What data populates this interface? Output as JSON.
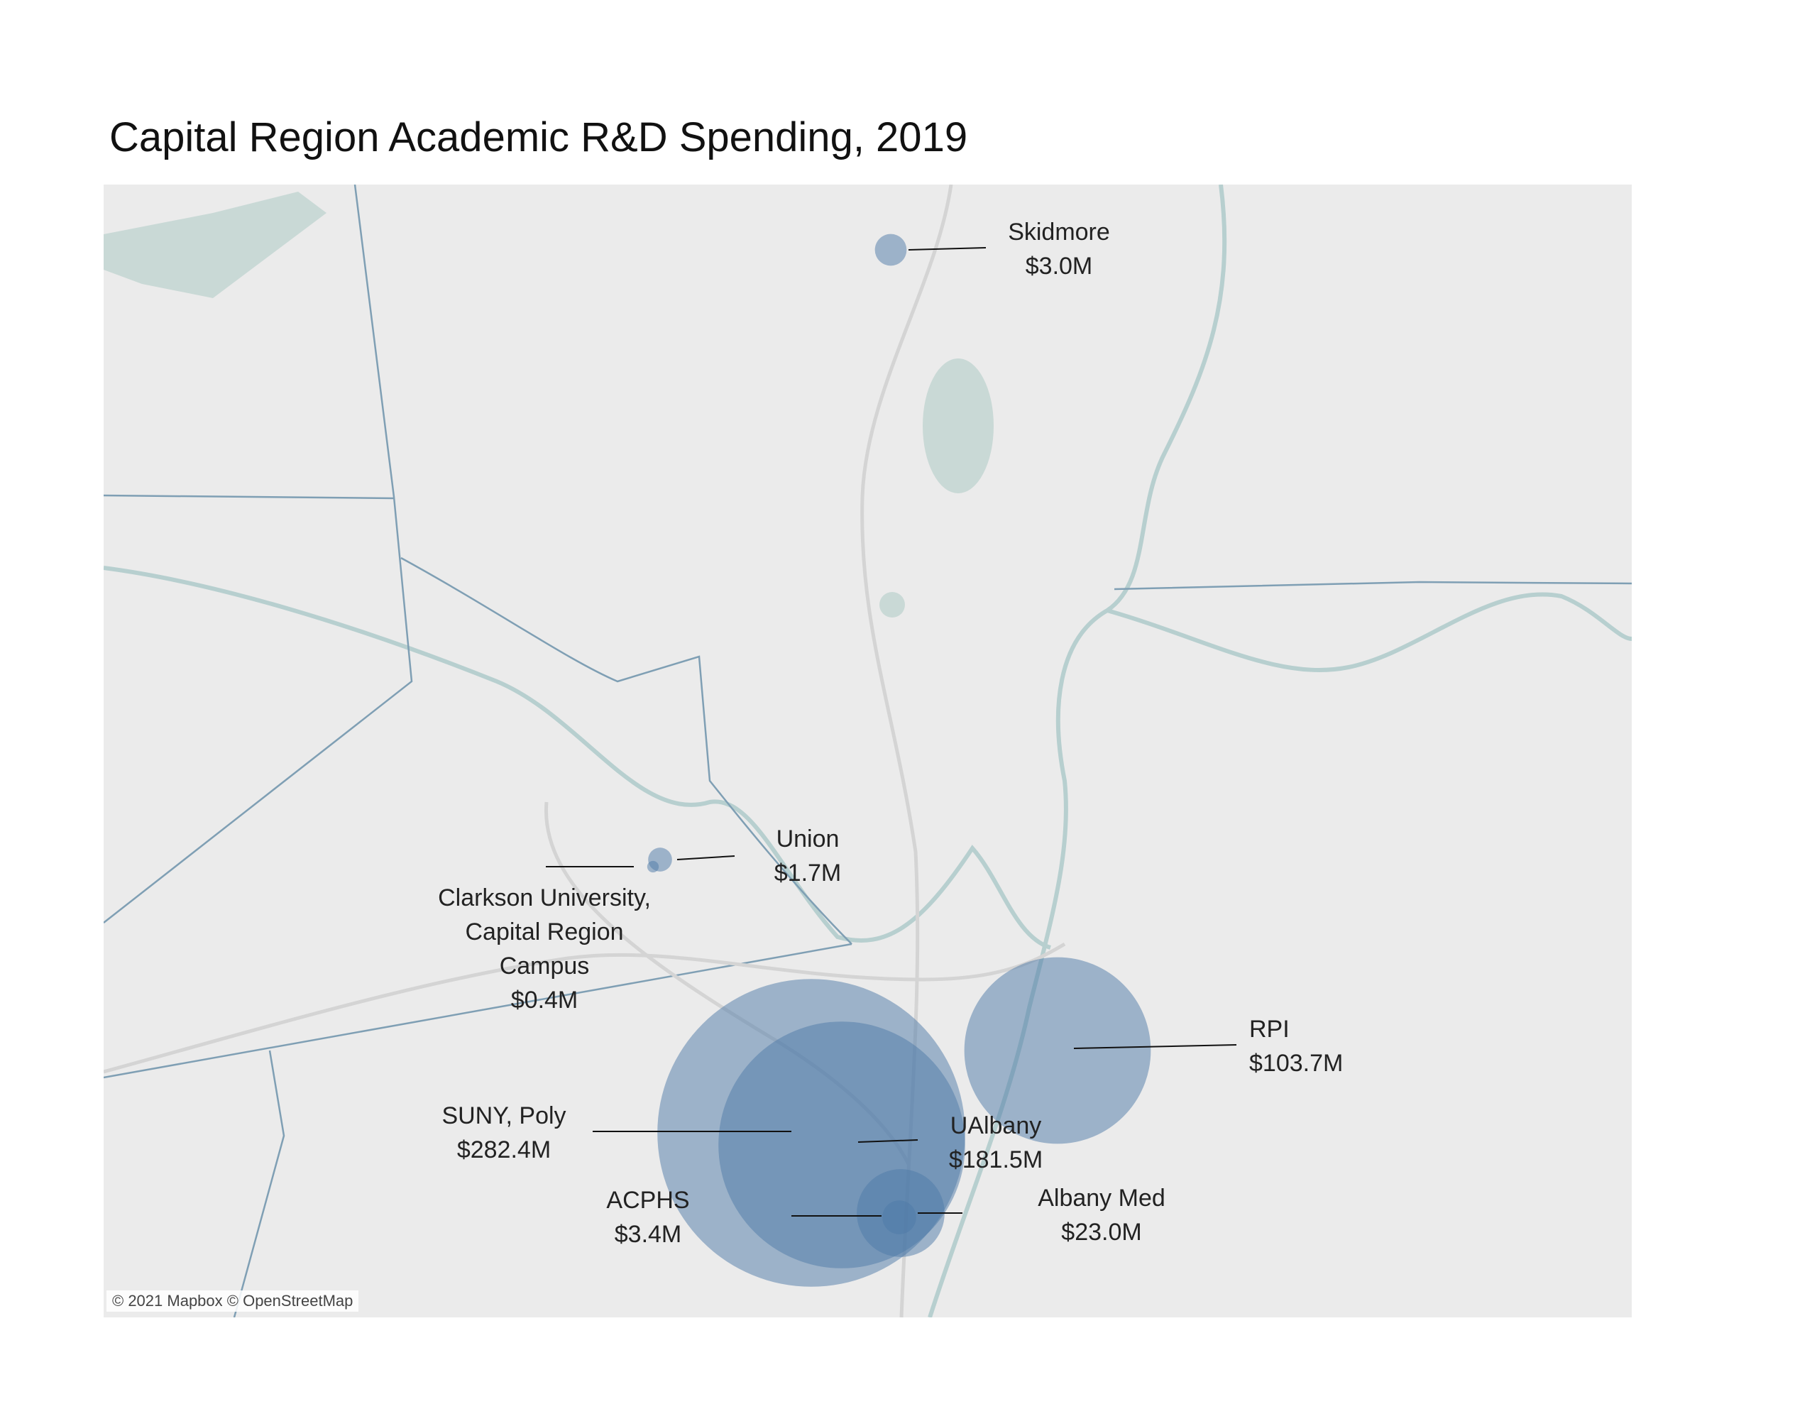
{
  "title": "Capital Region Academic R&D Spending, 2019",
  "attribution": "© 2021 Mapbox © OpenStreetMap",
  "bubble_color": "#4e79a7",
  "markers": [
    {
      "name": "SUNY, Poly",
      "value": 282.4,
      "value_label": "$282.4M"
    },
    {
      "name": "UAlbany",
      "value": 181.5,
      "value_label": "$181.5M"
    },
    {
      "name": "RPI",
      "value": 103.7,
      "value_label": "$103.7M"
    },
    {
      "name": "Albany Med",
      "value": 23.0,
      "value_label": "$23.0M"
    },
    {
      "name": "ACPHS",
      "value": 3.4,
      "value_label": "$3.4M"
    },
    {
      "name": "Skidmore",
      "value": 3.0,
      "value_label": "$3.0M"
    },
    {
      "name": "Union",
      "value": 1.7,
      "value_label": "$1.7M"
    },
    {
      "name": "Clarkson University, Capital Region Campus",
      "value": 0.4,
      "value_label": "$0.4M"
    }
  ]
}
